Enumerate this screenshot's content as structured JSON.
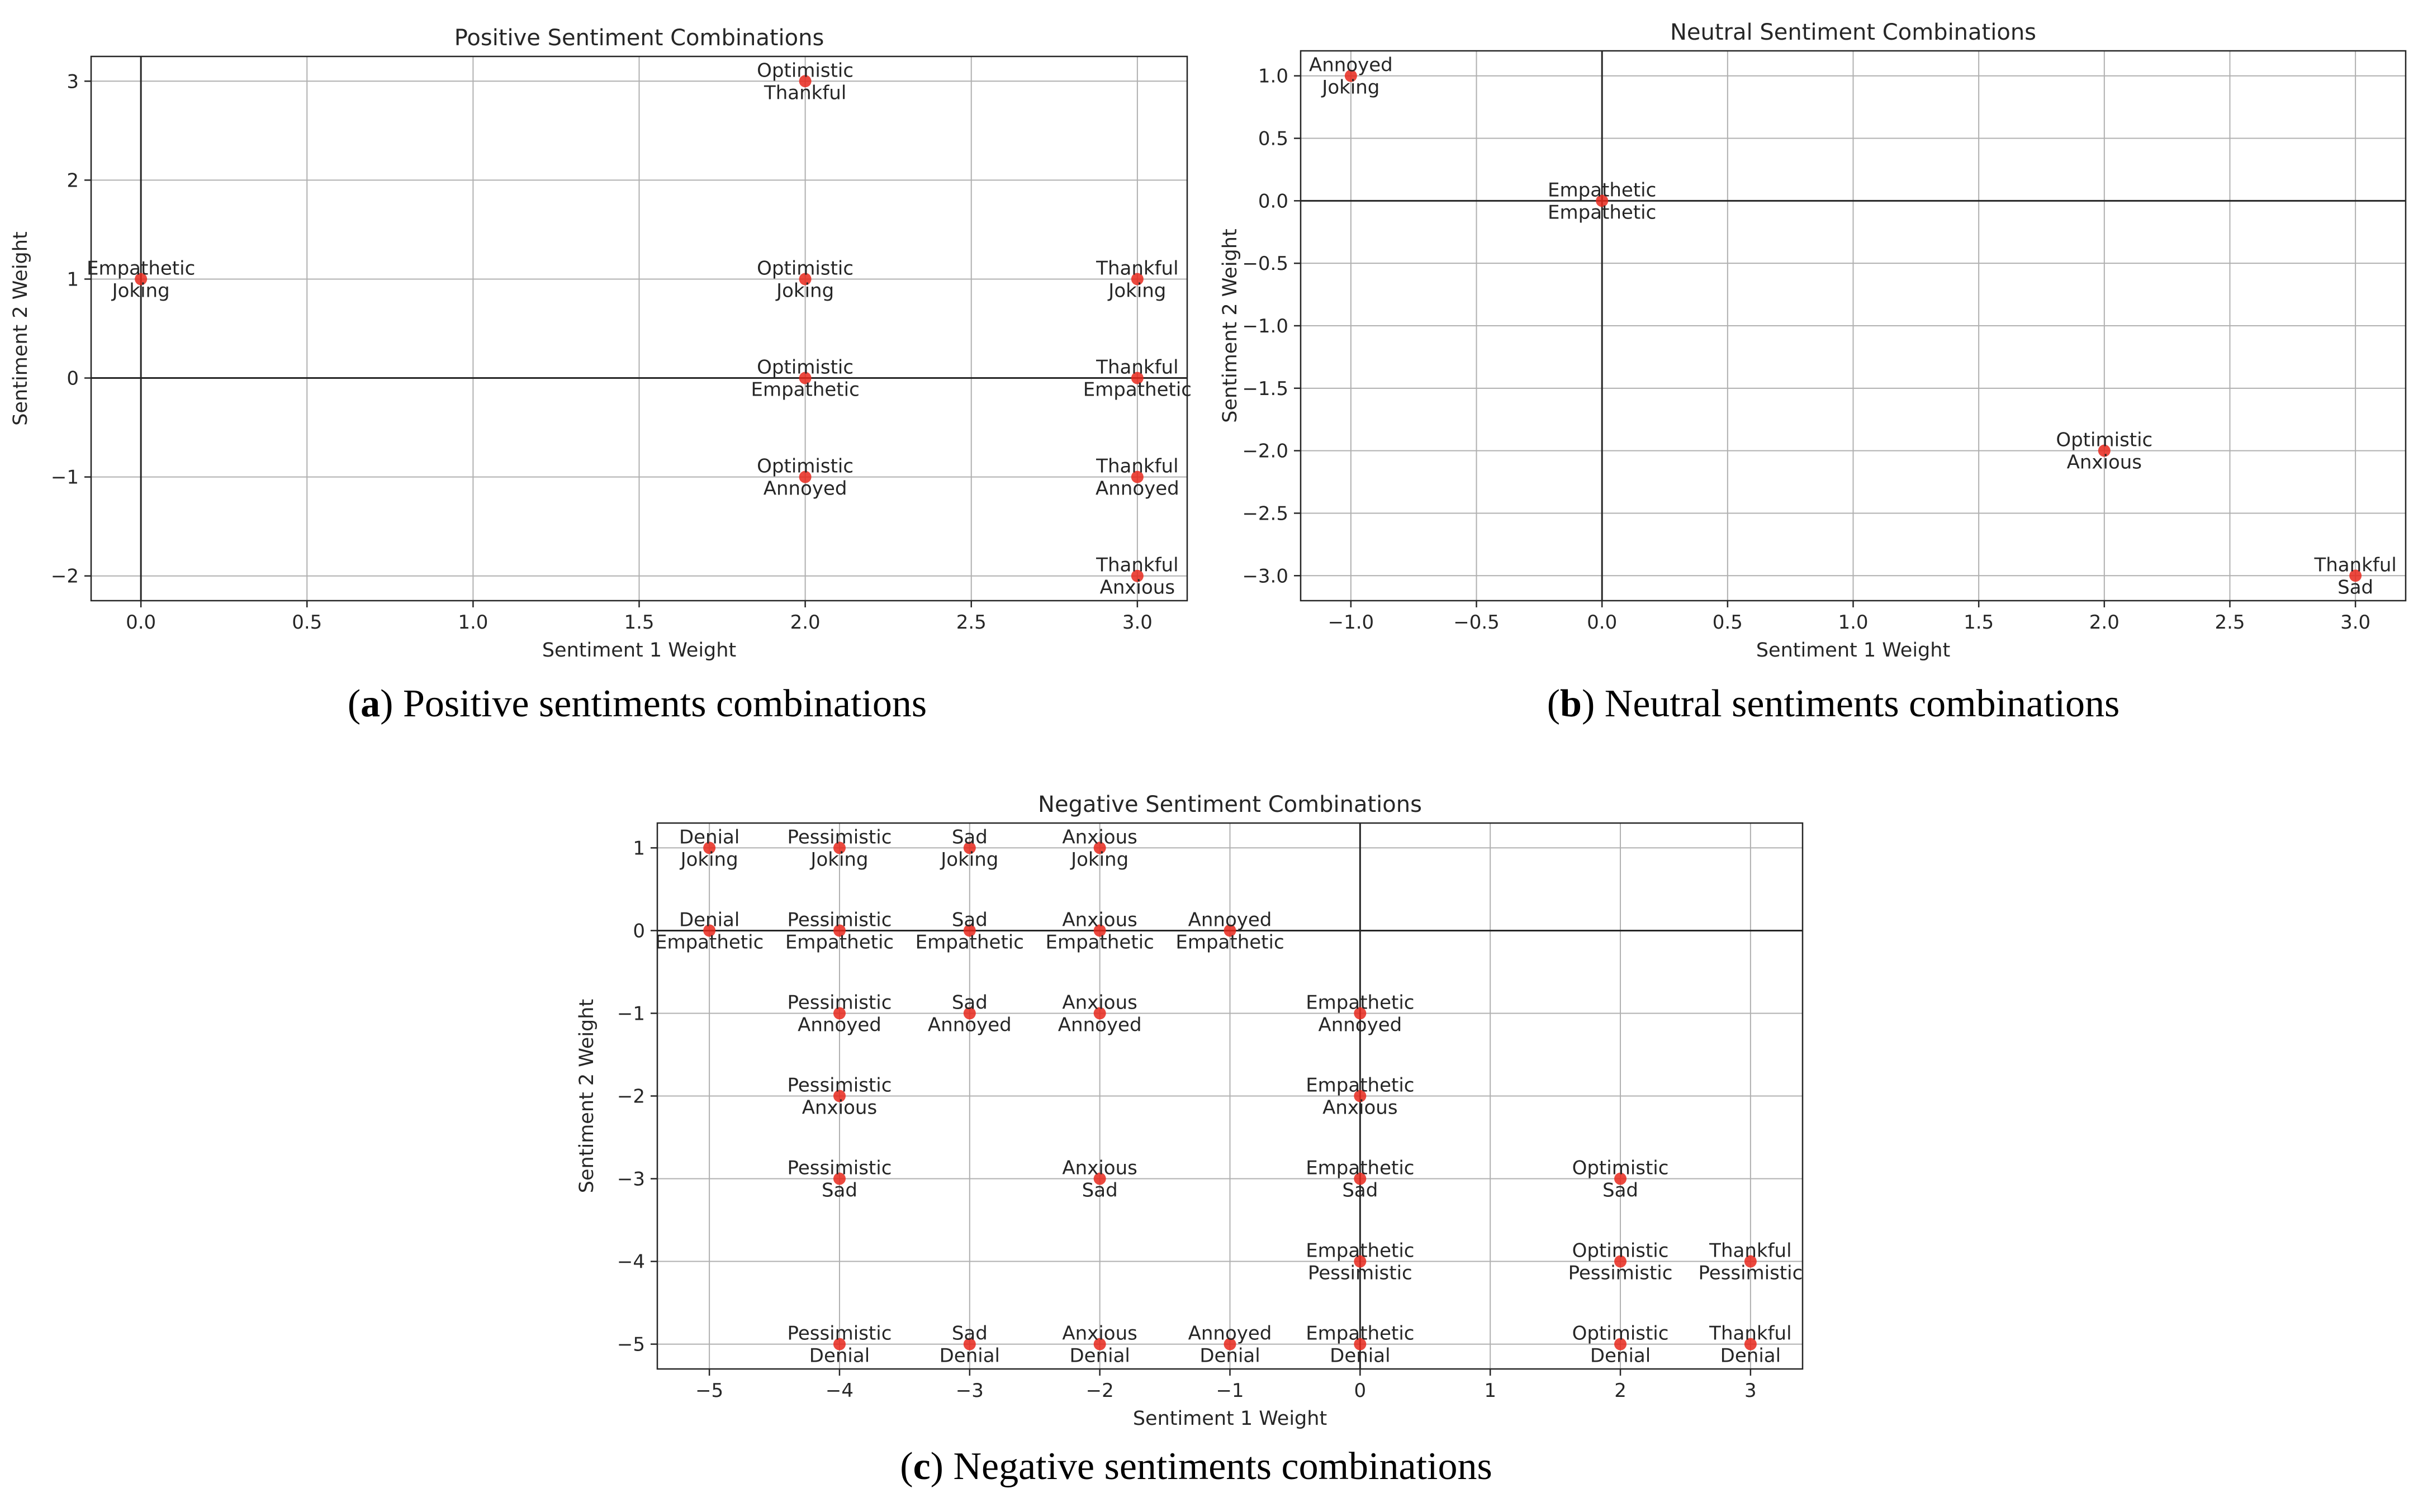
{
  "captions": [
    {
      "letter": "a",
      "text": " Positive sentiments combinations"
    },
    {
      "letter": "b",
      "text": " Neutral sentiments combinations"
    },
    {
      "letter": "c",
      "text": " Negative sentiments combinations"
    }
  ],
  "colors": {
    "marker": "#e8281c",
    "grid": "#b0b0b0",
    "axis": "#262626",
    "text": "#262626"
  },
  "chart_data": [
    {
      "type": "scatter",
      "title": "Positive Sentiment Combinations",
      "xlabel": "Sentiment 1 Weight",
      "ylabel": "Sentiment 2 Weight",
      "xlim": [
        -0.15,
        3.15
      ],
      "ylim": [
        -2.25,
        3.25
      ],
      "xticks": [
        0.0,
        0.5,
        1.0,
        1.5,
        2.0,
        2.5,
        3.0
      ],
      "xtick_labels": [
        "0.0",
        "0.5",
        "1.0",
        "1.5",
        "2.0",
        "2.5",
        "3.0"
      ],
      "yticks": [
        -2,
        -1,
        0,
        1,
        2,
        3
      ],
      "ytick_labels": [
        "−2",
        "−1",
        "0",
        "1",
        "2",
        "3"
      ],
      "points": [
        {
          "x": 2,
          "y": 3,
          "s1": "Optimistic",
          "s2": "Thankful"
        },
        {
          "x": 0,
          "y": 1,
          "s1": "Empathetic",
          "s2": "Joking"
        },
        {
          "x": 2,
          "y": 1,
          "s1": "Optimistic",
          "s2": "Joking"
        },
        {
          "x": 3,
          "y": 1,
          "s1": "Thankful",
          "s2": "Joking"
        },
        {
          "x": 2,
          "y": 0,
          "s1": "Optimistic",
          "s2": "Empathetic"
        },
        {
          "x": 3,
          "y": 0,
          "s1": "Thankful",
          "s2": "Empathetic"
        },
        {
          "x": 2,
          "y": -1,
          "s1": "Optimistic",
          "s2": "Annoyed"
        },
        {
          "x": 3,
          "y": -1,
          "s1": "Thankful",
          "s2": "Annoyed"
        },
        {
          "x": 3,
          "y": -2,
          "s1": "Thankful",
          "s2": "Anxious"
        }
      ]
    },
    {
      "type": "scatter",
      "title": "Neutral Sentiment Combinations",
      "xlabel": "Sentiment 1 Weight",
      "ylabel": "Sentiment 2 Weight",
      "xlim": [
        -1.2,
        3.2
      ],
      "ylim": [
        -3.2,
        1.2
      ],
      "xticks": [
        -1.0,
        -0.5,
        0.0,
        0.5,
        1.0,
        1.5,
        2.0,
        2.5,
        3.0
      ],
      "xtick_labels": [
        "−1.0",
        "−0.5",
        "0.0",
        "0.5",
        "1.0",
        "1.5",
        "2.0",
        "2.5",
        "3.0"
      ],
      "yticks": [
        1.0,
        0.5,
        0.0,
        -0.5,
        -1.0,
        -1.5,
        -2.0,
        -2.5,
        -3.0
      ],
      "ytick_labels": [
        "1.0",
        "0.5",
        "0.0",
        "−0.5",
        "−1.0",
        "−1.5",
        "−2.0",
        "−2.5",
        "−3.0"
      ],
      "points": [
        {
          "x": -1,
          "y": 1,
          "s1": "Annoyed",
          "s2": "Joking"
        },
        {
          "x": 0,
          "y": 0,
          "s1": "Empathetic",
          "s2": "Empathetic"
        },
        {
          "x": 2,
          "y": -2,
          "s1": "Optimistic",
          "s2": "Anxious"
        },
        {
          "x": 3,
          "y": -3,
          "s1": "Thankful",
          "s2": "Sad"
        }
      ]
    },
    {
      "type": "scatter",
      "title": "Negative Sentiment Combinations",
      "xlabel": "Sentiment 1 Weight",
      "ylabel": "Sentiment 2 Weight",
      "xlim": [
        -5.4,
        3.4
      ],
      "ylim": [
        -5.3,
        1.3
      ],
      "xticks": [
        -5,
        -4,
        -3,
        -2,
        -1,
        0,
        1,
        2,
        3
      ],
      "xtick_labels": [
        "−5",
        "−4",
        "−3",
        "−2",
        "−1",
        "0",
        "1",
        "2",
        "3"
      ],
      "yticks": [
        1,
        0,
        -1,
        -2,
        -3,
        -4,
        -5
      ],
      "ytick_labels": [
        "1",
        "0",
        "−1",
        "−2",
        "−3",
        "−4",
        "−5"
      ],
      "points": [
        {
          "x": -5,
          "y": 1,
          "s1": "Denial",
          "s2": "Joking"
        },
        {
          "x": -4,
          "y": 1,
          "s1": "Pessimistic",
          "s2": "Joking"
        },
        {
          "x": -3,
          "y": 1,
          "s1": "Sad",
          "s2": "Joking"
        },
        {
          "x": -2,
          "y": 1,
          "s1": "Anxious",
          "s2": "Joking"
        },
        {
          "x": -5,
          "y": 0,
          "s1": "Denial",
          "s2": "Empathetic"
        },
        {
          "x": -4,
          "y": 0,
          "s1": "Pessimistic",
          "s2": "Empathetic"
        },
        {
          "x": -3,
          "y": 0,
          "s1": "Sad",
          "s2": "Empathetic"
        },
        {
          "x": -2,
          "y": 0,
          "s1": "Anxious",
          "s2": "Empathetic"
        },
        {
          "x": -1,
          "y": 0,
          "s1": "Annoyed",
          "s2": "Empathetic"
        },
        {
          "x": -4,
          "y": -1,
          "s1": "Pessimistic",
          "s2": "Annoyed"
        },
        {
          "x": -3,
          "y": -1,
          "s1": "Sad",
          "s2": "Annoyed"
        },
        {
          "x": -2,
          "y": -1,
          "s1": "Anxious",
          "s2": "Annoyed"
        },
        {
          "x": 0,
          "y": -1,
          "s1": "Empathetic",
          "s2": "Annoyed"
        },
        {
          "x": -4,
          "y": -2,
          "s1": "Pessimistic",
          "s2": "Anxious"
        },
        {
          "x": 0,
          "y": -2,
          "s1": "Empathetic",
          "s2": "Anxious"
        },
        {
          "x": -4,
          "y": -3,
          "s1": "Pessimistic",
          "s2": "Sad"
        },
        {
          "x": -2,
          "y": -3,
          "s1": "Anxious",
          "s2": "Sad"
        },
        {
          "x": 0,
          "y": -3,
          "s1": "Empathetic",
          "s2": "Sad"
        },
        {
          "x": 2,
          "y": -3,
          "s1": "Optimistic",
          "s2": "Sad"
        },
        {
          "x": 0,
          "y": -4,
          "s1": "Empathetic",
          "s2": "Pessimistic"
        },
        {
          "x": 2,
          "y": -4,
          "s1": "Optimistic",
          "s2": "Pessimistic"
        },
        {
          "x": 3,
          "y": -4,
          "s1": "Thankful",
          "s2": "Pessimistic"
        },
        {
          "x": -4,
          "y": -5,
          "s1": "Pessimistic",
          "s2": "Denial"
        },
        {
          "x": -3,
          "y": -5,
          "s1": "Sad",
          "s2": "Denial"
        },
        {
          "x": -2,
          "y": -5,
          "s1": "Anxious",
          "s2": "Denial"
        },
        {
          "x": -1,
          "y": -5,
          "s1": "Annoyed",
          "s2": "Denial"
        },
        {
          "x": 0,
          "y": -5,
          "s1": "Empathetic",
          "s2": "Denial"
        },
        {
          "x": 2,
          "y": -5,
          "s1": "Optimistic",
          "s2": "Denial"
        },
        {
          "x": 3,
          "y": -5,
          "s1": "Thankful",
          "s2": "Denial"
        }
      ]
    }
  ]
}
